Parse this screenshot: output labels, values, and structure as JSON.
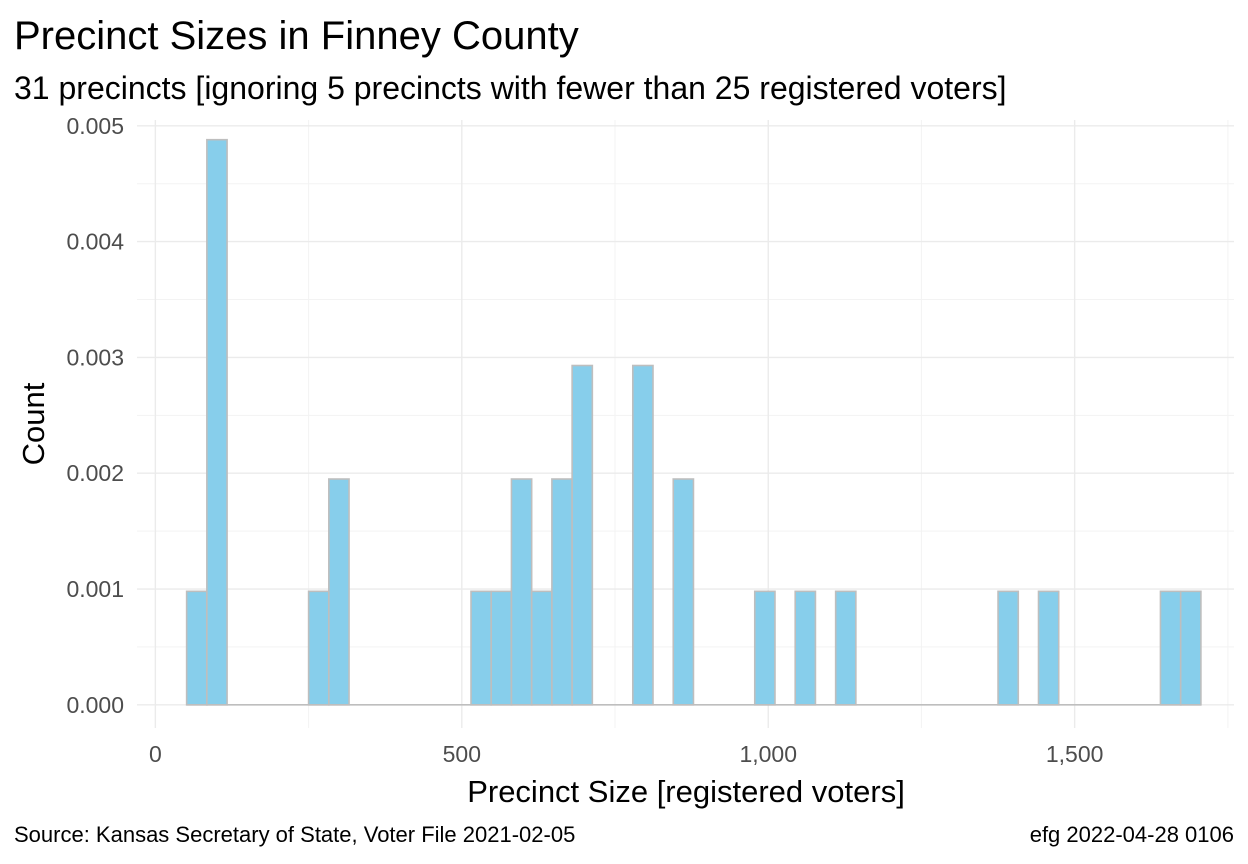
{
  "chart_data": {
    "type": "bar",
    "title": "Precinct Sizes in Finney County",
    "subtitle": "31 precincts [ignoring 5 precincts with fewer than 25 registered voters]",
    "xlabel": "Precinct Size [registered voters]",
    "ylabel": "Count",
    "caption_left": "Source:  Kansas Secretary of State, Voter File  2021-02-05",
    "caption_right": "efg 2022-04-28 0106",
    "xlim": [
      -30,
      1760
    ],
    "ylim": [
      -0.0002,
      0.00505
    ],
    "x_ticks": [
      0,
      500,
      1000,
      1500
    ],
    "x_tick_labels": [
      "0",
      "500",
      "1,000",
      "1,500"
    ],
    "y_ticks": [
      0.0,
      0.001,
      0.002,
      0.003,
      0.004,
      0.005
    ],
    "y_tick_labels": [
      "0.000",
      "0.001",
      "0.002",
      "0.003",
      "0.004",
      "0.005"
    ],
    "bin_width": 33,
    "bars": [
      {
        "x0": 51,
        "x1": 84,
        "y": 0.00098
      },
      {
        "x0": 84,
        "x1": 117,
        "y": 0.00488
      },
      {
        "x0": 250,
        "x1": 283,
        "y": 0.00098
      },
      {
        "x0": 283,
        "x1": 316,
        "y": 0.00195
      },
      {
        "x0": 515,
        "x1": 548,
        "y": 0.00098
      },
      {
        "x0": 548,
        "x1": 581,
        "y": 0.00098
      },
      {
        "x0": 581,
        "x1": 614,
        "y": 0.00195
      },
      {
        "x0": 614,
        "x1": 647,
        "y": 0.00098
      },
      {
        "x0": 647,
        "x1": 680,
        "y": 0.00195
      },
      {
        "x0": 680,
        "x1": 713,
        "y": 0.00293
      },
      {
        "x0": 779,
        "x1": 812,
        "y": 0.00293
      },
      {
        "x0": 845,
        "x1": 878,
        "y": 0.00195
      },
      {
        "x0": 978,
        "x1": 1011,
        "y": 0.00098
      },
      {
        "x0": 1044,
        "x1": 1077,
        "y": 0.00098
      },
      {
        "x0": 1110,
        "x1": 1143,
        "y": 0.00098
      },
      {
        "x0": 1375,
        "x1": 1408,
        "y": 0.00098
      },
      {
        "x0": 1441,
        "x1": 1474,
        "y": 0.00098
      },
      {
        "x0": 1640,
        "x1": 1673,
        "y": 0.00098
      },
      {
        "x0": 1673,
        "x1": 1706,
        "y": 0.00098
      }
    ],
    "bar_fill": "#87ceeb",
    "bar_stroke": "#bebebe",
    "grid": true,
    "legend": "none"
  }
}
